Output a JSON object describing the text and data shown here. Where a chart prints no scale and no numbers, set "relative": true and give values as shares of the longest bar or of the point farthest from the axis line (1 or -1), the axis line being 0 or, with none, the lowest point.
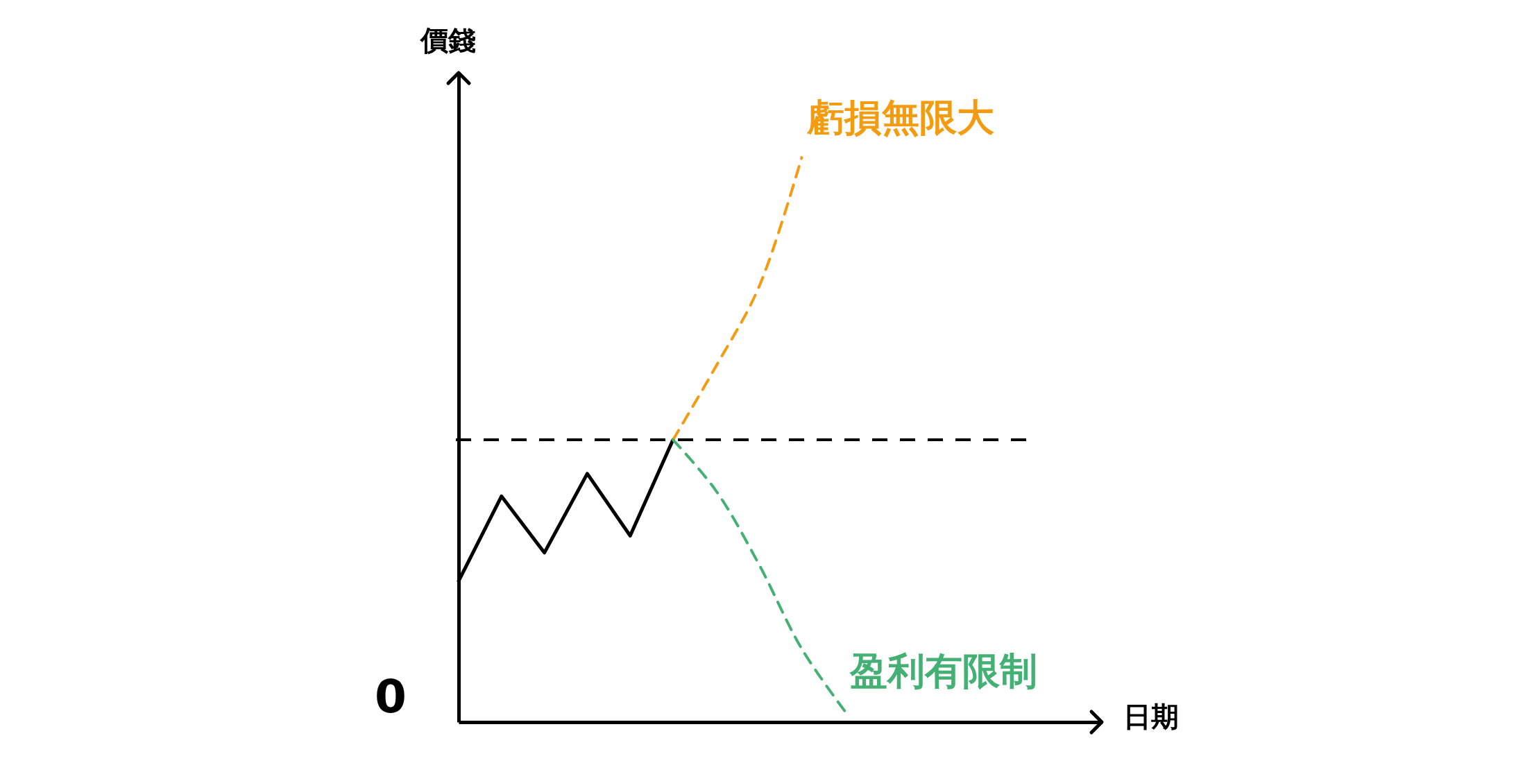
{
  "chart_data": {
    "type": "line",
    "relative": true,
    "xlabel": "日期",
    "ylabel": "價錢",
    "categories": [
      null,
      null,
      null,
      null,
      null,
      null,
      null,
      null,
      null,
      null,
      null,
      null,
      null,
      null,
      null,
      null
    ],
    "series": [
      {
        "color": "#000000",
        "line_style": "solid",
        "values": [
          0.25,
          0.4,
          0.3,
          0.44,
          0.33,
          0.5,
          null,
          null,
          null,
          null,
          null,
          null,
          null,
          null,
          null,
          null
        ]
      },
      {
        "name": "虧損無限大",
        "color": "#f39c12",
        "line_style": "dashed",
        "values": [
          null,
          null,
          null,
          null,
          null,
          0.5,
          0.63,
          0.77,
          1.0,
          null,
          null,
          null,
          null,
          null,
          null,
          null
        ]
      },
      {
        "name": "盈利有限制",
        "color": "#44b074",
        "line_style": "dashed",
        "values": [
          null,
          null,
          null,
          null,
          null,
          0.5,
          0.41,
          0.28,
          0.13,
          0.02,
          null,
          null,
          null,
          null,
          null,
          null
        ]
      }
    ],
    "ref_lines": [
      {
        "axis": "y",
        "value": 0.5,
        "color": "#000000",
        "line_style": "dashed"
      }
    ],
    "annotations": [
      "0"
    ]
  }
}
